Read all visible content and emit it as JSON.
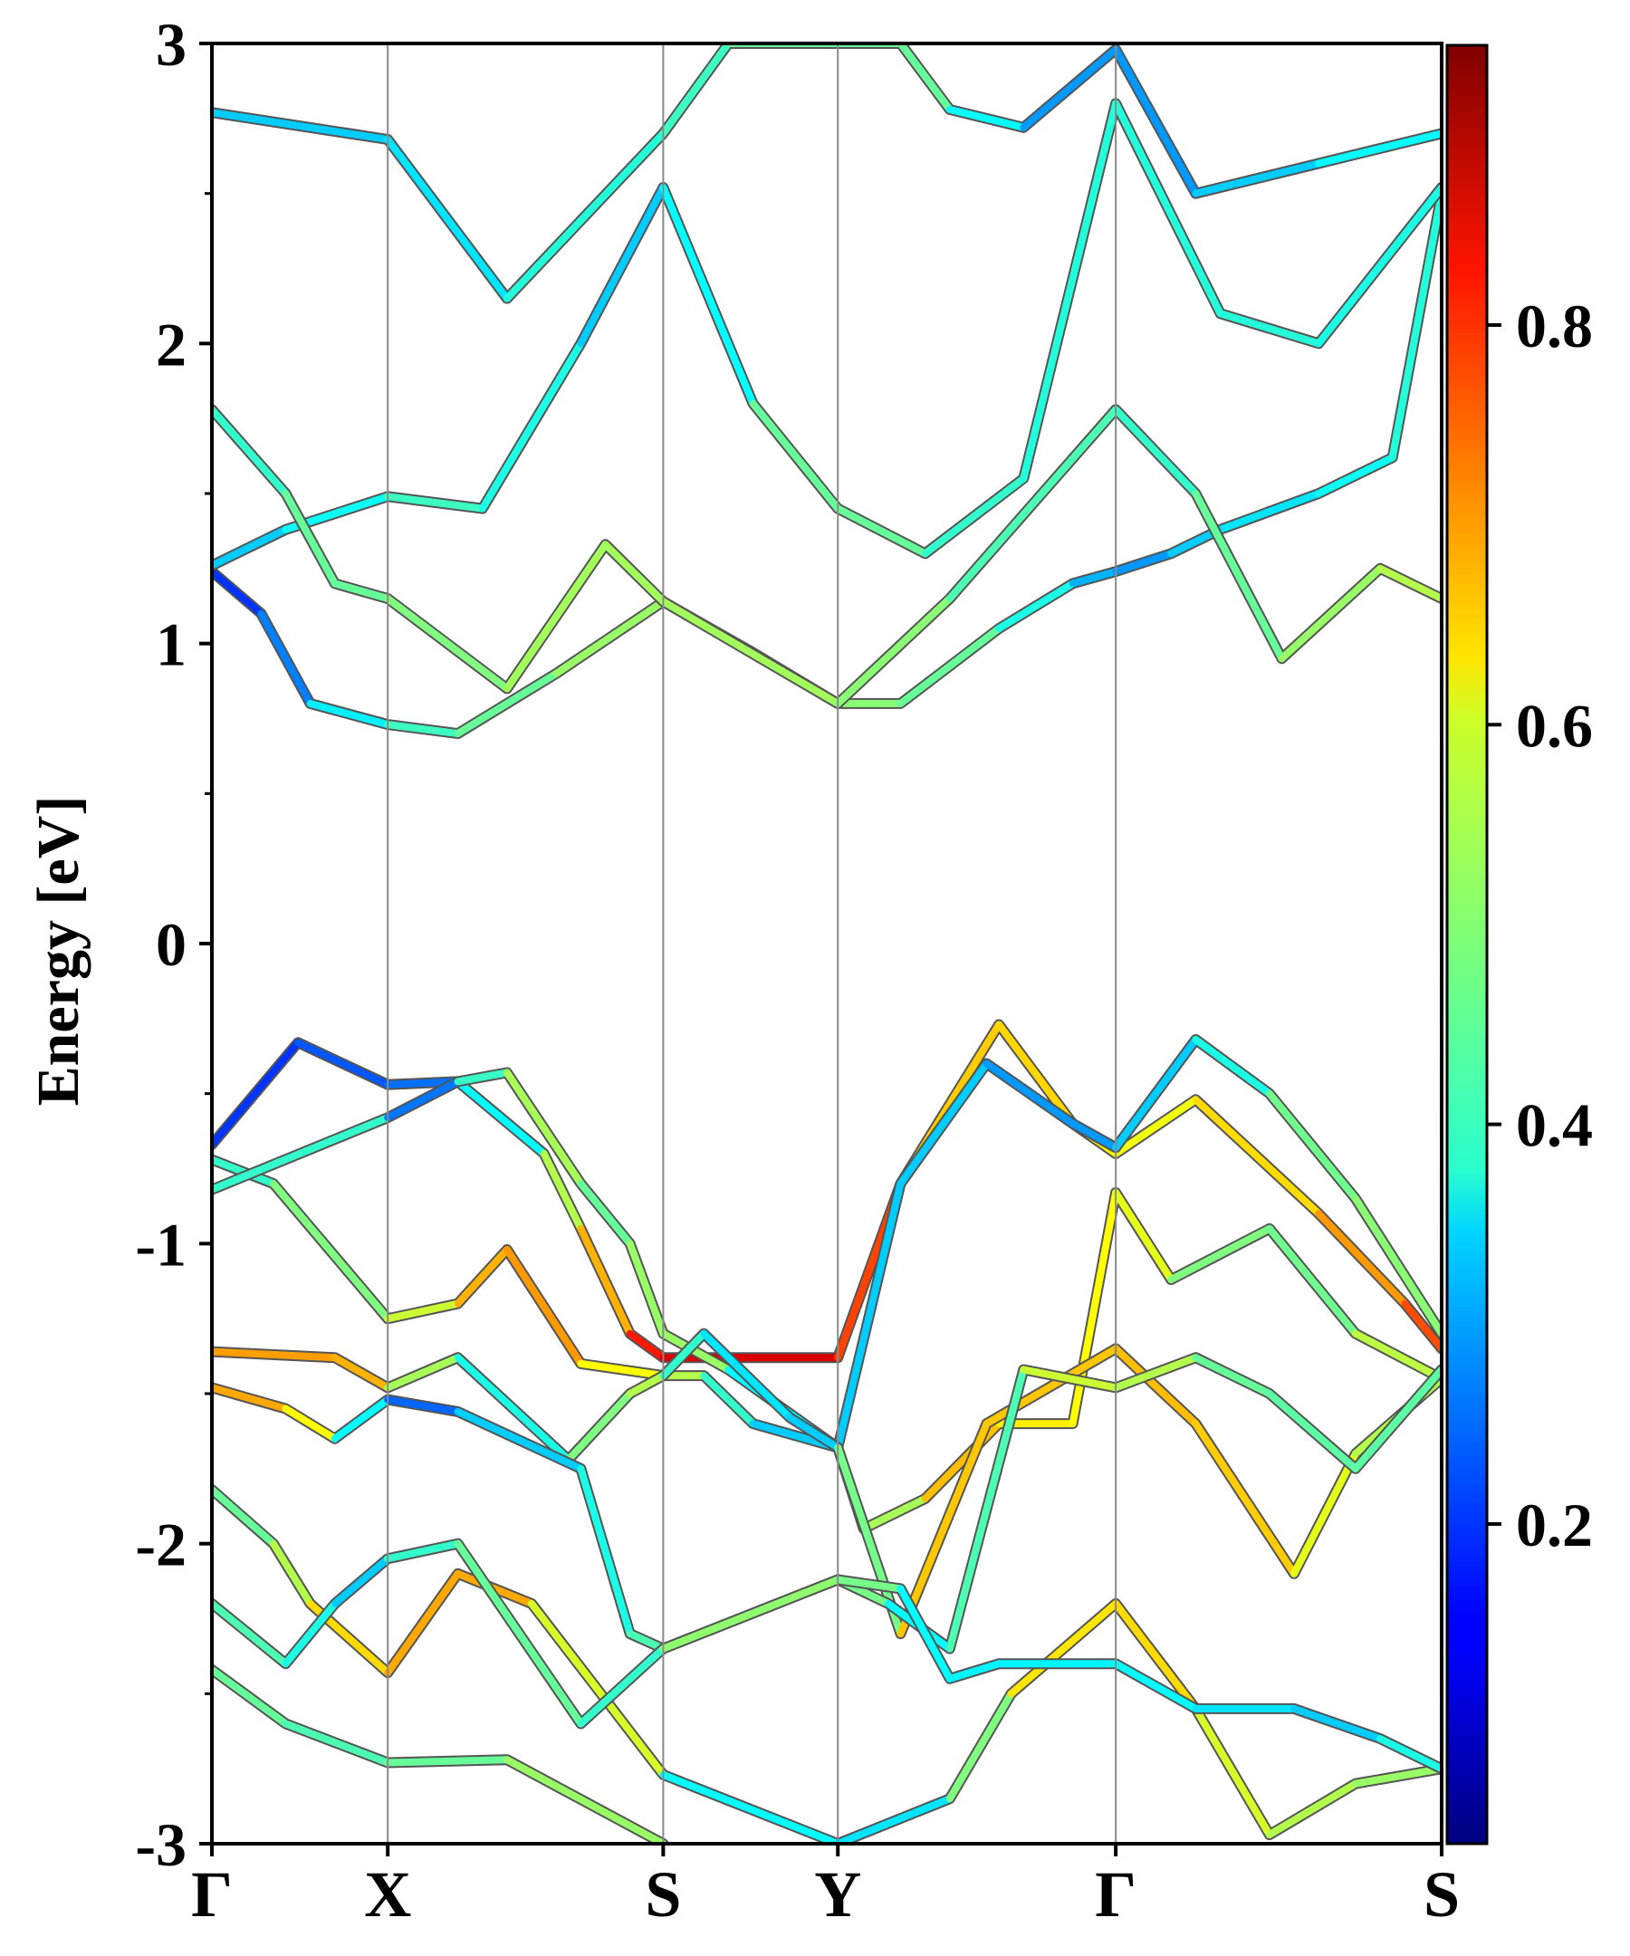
{
  "chart_data": {
    "type": "line",
    "title": "",
    "xlabel": "",
    "ylabel": "Energy [eV]",
    "ylim": [
      -3,
      3
    ],
    "yticks": [
      -3,
      -2,
      -1,
      0,
      1,
      2,
      3
    ],
    "ytick_labels": [
      "-3",
      "-2",
      "-1",
      "0",
      "1",
      "2",
      "3"
    ],
    "kpoint_labels": [
      "Γ",
      "X",
      "S",
      "Y",
      "Γ",
      "S"
    ],
    "kpoint_positions": [
      0,
      0.143,
      0.367,
      0.509,
      0.735,
      1.0
    ],
    "grid": false,
    "colorbar": {
      "colormap": "jet",
      "range": [
        0.04,
        0.94
      ],
      "ticks": [
        0.2,
        0.4,
        0.6,
        0.8
      ],
      "tick_labels": [
        "0.2",
        "0.4",
        "0.6",
        "0.8"
      ]
    },
    "series": [
      {
        "points": [
          [
            0,
            1.24,
            0.15
          ],
          [
            0.04,
            1.1,
            0.2
          ],
          [
            0.08,
            0.8,
            0.3
          ],
          [
            0.143,
            0.73,
            0.42
          ],
          [
            0.2,
            0.7,
            0.45
          ],
          [
            0.28,
            0.9,
            0.5
          ],
          [
            0.367,
            1.14,
            0.55
          ],
          [
            0.44,
            0.97,
            0.55
          ],
          [
            0.509,
            0.8,
            0.52
          ],
          [
            0.56,
            0.8,
            0.5
          ],
          [
            0.64,
            1.05,
            0.45
          ],
          [
            0.7,
            1.2,
            0.35
          ],
          [
            0.735,
            1.24,
            0.25
          ],
          [
            0.78,
            1.3,
            0.3
          ],
          [
            0.82,
            1.38,
            0.35
          ],
          [
            0.9,
            1.5,
            0.35
          ],
          [
            0.96,
            1.62,
            0.42
          ],
          [
            1.0,
            2.5,
            0.4
          ]
        ]
      },
      {
        "points": [
          [
            0,
            1.26,
            0.3
          ],
          [
            0.06,
            1.38,
            0.35
          ],
          [
            0.143,
            1.49,
            0.42
          ],
          [
            0.22,
            1.45,
            0.45
          ],
          [
            0.3,
            2.0,
            0.35
          ],
          [
            0.367,
            2.52,
            0.3
          ],
          [
            0.44,
            1.8,
            0.45
          ],
          [
            0.509,
            1.45,
            0.5
          ],
          [
            0.58,
            1.3,
            0.45
          ],
          [
            0.66,
            1.55,
            0.4
          ],
          [
            0.735,
            2.8,
            0.42
          ],
          [
            0.82,
            2.1,
            0.4
          ],
          [
            0.9,
            2.0,
            0.42
          ],
          [
            1.0,
            2.52,
            0.38
          ]
        ]
      },
      {
        "points": [
          [
            0,
            1.78,
            0.4
          ],
          [
            0.06,
            1.5,
            0.45
          ],
          [
            0.1,
            1.2,
            0.5
          ],
          [
            0.143,
            1.15,
            0.45
          ],
          [
            0.24,
            0.85,
            0.55
          ],
          [
            0.32,
            1.33,
            0.52
          ],
          [
            0.367,
            1.14,
            0.55
          ],
          [
            0.509,
            0.8,
            0.52
          ],
          [
            0.6,
            1.15,
            0.5
          ],
          [
            0.735,
            1.78,
            0.4
          ],
          [
            0.8,
            1.5,
            0.45
          ],
          [
            0.87,
            0.95,
            0.5
          ],
          [
            0.95,
            1.25,
            0.55
          ],
          [
            1.0,
            1.15,
            0.55
          ]
        ]
      },
      {
        "points": [
          [
            0,
            2.77,
            0.35
          ],
          [
            0.143,
            2.68,
            0.3
          ],
          [
            0.24,
            2.15,
            0.4
          ],
          [
            0.367,
            2.7,
            0.42
          ],
          [
            0.42,
            3.0,
            0.45
          ],
          [
            0.56,
            3.0,
            0.5
          ],
          [
            0.6,
            2.78,
            0.45
          ],
          [
            0.66,
            2.72,
            0.3
          ],
          [
            0.735,
            2.98,
            0.25
          ],
          [
            0.8,
            2.5,
            0.3
          ],
          [
            0.9,
            2.6,
            0.35
          ],
          [
            1.0,
            2.7,
            0.4
          ]
        ]
      },
      {
        "points": [
          [
            0,
            -0.67,
            0.15
          ],
          [
            0.07,
            -0.33,
            0.2
          ],
          [
            0.143,
            -0.47,
            0.22
          ],
          [
            0.2,
            -0.46,
            0.25
          ],
          [
            0.27,
            -0.7,
            0.5
          ],
          [
            0.3,
            -0.95,
            0.6
          ],
          [
            0.34,
            -1.3,
            0.8
          ],
          [
            0.367,
            -1.38,
            0.9
          ],
          [
            0.509,
            -1.38,
            0.92
          ],
          [
            0.56,
            -0.8,
            0.7
          ],
          [
            0.64,
            -0.27,
            0.65
          ],
          [
            0.7,
            -0.6,
            0.68
          ],
          [
            0.735,
            -0.7,
            0.6
          ],
          [
            0.8,
            -0.52,
            0.62
          ],
          [
            0.9,
            -0.9,
            0.7
          ],
          [
            0.97,
            -1.2,
            0.75
          ],
          [
            1.0,
            -1.35,
            0.85
          ]
        ]
      },
      {
        "points": [
          [
            0,
            -0.72,
            0.4
          ],
          [
            0.05,
            -0.8,
            0.45
          ],
          [
            0.143,
            -1.25,
            0.55
          ],
          [
            0.2,
            -1.2,
            0.6
          ],
          [
            0.24,
            -1.02,
            0.8
          ],
          [
            0.3,
            -1.4,
            0.65
          ],
          [
            0.367,
            -1.44,
            0.6
          ],
          [
            0.4,
            -1.44,
            0.5
          ],
          [
            0.44,
            -1.6,
            0.35
          ],
          [
            0.509,
            -1.68,
            0.3
          ],
          [
            0.56,
            -0.8,
            0.35
          ],
          [
            0.63,
            -0.4,
            0.3
          ],
          [
            0.7,
            -0.6,
            0.25
          ],
          [
            0.735,
            -0.68,
            0.3
          ],
          [
            0.8,
            -0.32,
            0.35
          ],
          [
            0.86,
            -0.5,
            0.45
          ],
          [
            0.93,
            -0.85,
            0.52
          ],
          [
            1.0,
            -1.3,
            0.5
          ]
        ]
      },
      {
        "points": [
          [
            0,
            -0.82,
            0.65
          ],
          [
            0.143,
            -0.58,
            0.2
          ],
          [
            0.2,
            -0.46,
            0.28
          ],
          [
            0.24,
            -0.43,
            0.58
          ],
          [
            0.3,
            -0.8,
            0.5
          ],
          [
            0.34,
            -1.0,
            0.45
          ],
          [
            0.367,
            -1.3,
            0.6
          ],
          [
            0.42,
            -1.42,
            0.45
          ],
          [
            0.509,
            -1.68,
            0.3
          ],
          [
            0.53,
            -1.95,
            0.38
          ],
          [
            0.58,
            -1.85,
            0.7
          ],
          [
            0.64,
            -1.6,
            0.68
          ],
          [
            0.7,
            -1.6,
            0.6
          ],
          [
            0.735,
            -0.83,
            0.65
          ],
          [
            0.78,
            -1.12,
            0.55
          ],
          [
            0.86,
            -0.95,
            0.45
          ],
          [
            0.93,
            -1.3,
            0.52
          ],
          [
            1.0,
            -1.45,
            0.6
          ]
        ]
      },
      {
        "points": [
          [
            0,
            -1.36,
            0.72
          ],
          [
            0.1,
            -1.38,
            0.72
          ],
          [
            0.143,
            -1.48,
            0.68
          ],
          [
            0.2,
            -1.38,
            0.4
          ],
          [
            0.29,
            -1.72,
            0.4
          ],
          [
            0.34,
            -1.5,
            0.6
          ],
          [
            0.367,
            -1.44,
            0.5
          ],
          [
            0.4,
            -1.3,
            0.35
          ],
          [
            0.47,
            -1.58,
            0.35
          ],
          [
            0.509,
            -1.68,
            0.3
          ],
          [
            0.56,
            -2.3,
            0.68
          ],
          [
            0.63,
            -1.6,
            0.68
          ],
          [
            0.735,
            -1.35,
            0.68
          ],
          [
            0.8,
            -1.6,
            0.7
          ],
          [
            0.88,
            -2.1,
            0.65
          ],
          [
            0.93,
            -1.7,
            0.55
          ],
          [
            1.0,
            -1.45,
            0.55
          ]
        ]
      },
      {
        "points": [
          [
            0,
            -1.48,
            0.72
          ],
          [
            0.06,
            -1.55,
            0.7
          ],
          [
            0.1,
            -1.65,
            0.55
          ],
          [
            0.143,
            -1.52,
            0.2
          ],
          [
            0.2,
            -1.56,
            0.25
          ],
          [
            0.3,
            -1.75,
            0.4
          ],
          [
            0.34,
            -2.3,
            0.4
          ],
          [
            0.367,
            -2.35,
            0.5
          ],
          [
            0.509,
            -2.12,
            0.58
          ],
          [
            0.55,
            -2.2,
            0.4
          ],
          [
            0.6,
            -2.35,
            0.35
          ],
          [
            0.66,
            -1.42,
            0.55
          ],
          [
            0.735,
            -1.48,
            0.6
          ],
          [
            0.8,
            -1.38,
            0.5
          ],
          [
            0.86,
            -1.5,
            0.45
          ],
          [
            0.93,
            -1.75,
            0.48
          ],
          [
            1.0,
            -1.42,
            0.45
          ]
        ]
      },
      {
        "points": [
          [
            0,
            -1.82,
            0.45
          ],
          [
            0.05,
            -2.0,
            0.5
          ],
          [
            0.08,
            -2.2,
            0.6
          ],
          [
            0.143,
            -2.43,
            0.72
          ],
          [
            0.2,
            -2.1,
            0.7
          ],
          [
            0.26,
            -2.2,
            0.72
          ],
          [
            0.367,
            -2.77,
            0.45
          ],
          [
            0.509,
            -3.0,
            0.3
          ],
          [
            0.6,
            -2.85,
            0.4
          ],
          [
            0.65,
            -2.5,
            0.6
          ],
          [
            0.735,
            -2.2,
            0.7
          ],
          [
            0.8,
            -2.55,
            0.62
          ],
          [
            0.86,
            -2.97,
            0.55
          ],
          [
            0.93,
            -2.8,
            0.55
          ],
          [
            1.0,
            -2.75,
            0.5
          ]
        ]
      },
      {
        "points": [
          [
            0,
            -2.2,
            0.45
          ],
          [
            0.06,
            -2.4,
            0.45
          ],
          [
            0.1,
            -2.2,
            0.35
          ],
          [
            0.143,
            -2.05,
            0.3
          ],
          [
            0.2,
            -2.0,
            0.55
          ],
          [
            0.3,
            -2.6,
            0.4
          ],
          [
            0.367,
            -2.35,
            0.45
          ],
          [
            0.509,
            -2.12,
            0.58
          ],
          [
            0.56,
            -2.15,
            0.4
          ],
          [
            0.6,
            -2.45,
            0.35
          ],
          [
            0.64,
            -2.4,
            0.38
          ],
          [
            0.735,
            -2.4,
            0.35
          ],
          [
            0.8,
            -2.55,
            0.4
          ],
          [
            0.88,
            -2.55,
            0.3
          ],
          [
            0.95,
            -2.65,
            0.35
          ],
          [
            1.0,
            -2.75,
            0.45
          ]
        ]
      },
      {
        "points": [
          [
            0,
            -2.42,
            0.5
          ],
          [
            0.06,
            -2.6,
            0.45
          ],
          [
            0.143,
            -2.73,
            0.45
          ],
          [
            0.24,
            -2.72,
            0.5
          ],
          [
            0.367,
            -3.0,
            0.55
          ]
        ]
      }
    ]
  }
}
